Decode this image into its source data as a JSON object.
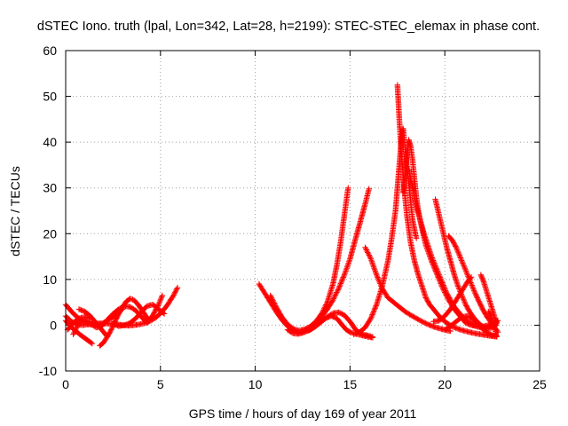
{
  "chart_data": {
    "type": "scatter",
    "title": "dSTEC Iono. truth (lpal, Lon=342, Lat=28, h=2199): STEC-STEC_elemax in phase cont.",
    "xlabel": "GPS time / hours of day 169 of year 2011",
    "ylabel": "dSTEC  / TECUs",
    "xlim": [
      0,
      25
    ],
    "ylim": [
      -10,
      60
    ],
    "xticks": [
      0,
      5,
      10,
      15,
      20,
      25
    ],
    "yticks": [
      -10,
      0,
      10,
      20,
      30,
      40,
      50,
      60
    ],
    "xtick_labels": [
      "0",
      "5",
      "10",
      "15",
      "20",
      "25"
    ],
    "ytick_labels": [
      "-10",
      "0",
      "10",
      "20",
      "30",
      "40",
      "50",
      "60"
    ],
    "grid": true,
    "marker": "+",
    "color": "#ff0000",
    "series": [
      {
        "x": [
          0.0,
          0.3,
          0.6,
          0.9,
          1.2,
          1.5,
          1.8,
          2.1,
          2.4,
          2.7,
          3.0
        ],
        "y": [
          4.5,
          3.0,
          1.8,
          0.8,
          0.2,
          0.0,
          0.2,
          0.7,
          1.5,
          2.5,
          3.5
        ]
      },
      {
        "x": [
          0.0,
          0.3,
          0.6,
          0.9,
          1.2,
          1.5,
          1.8,
          2.1,
          2.4,
          2.7,
          3.0,
          3.3,
          3.6,
          3.9,
          4.2,
          4.5,
          4.8,
          5.1,
          5.4,
          5.7,
          5.9
        ],
        "y": [
          2.0,
          0.8,
          0.2,
          0.0,
          0.2,
          0.3,
          0.4,
          0.4,
          0.3,
          0.2,
          0.0,
          -0.1,
          0.0,
          0.2,
          0.5,
          1.0,
          1.8,
          3.0,
          4.6,
          6.6,
          8.2
        ]
      },
      {
        "x": [
          0.1,
          0.4,
          0.7,
          1.0,
          1.3
        ],
        "y": [
          -1.0,
          0.5,
          1.5,
          1.8,
          1.5
        ]
      },
      {
        "x": [
          0.4,
          0.7,
          1.0,
          1.3,
          1.6,
          1.9,
          2.2,
          2.5,
          2.8,
          3.1,
          3.4,
          3.7,
          4.0,
          4.3,
          4.6,
          4.9,
          5.1
        ],
        "y": [
          -2.0,
          0.5,
          1.2,
          0.5,
          -0.5,
          -0.2,
          1.2,
          2.5,
          3.5,
          4.2,
          4.0,
          3.2,
          1.8,
          0.5,
          2.2,
          4.5,
          6.5
        ]
      },
      {
        "x": [
          0.0,
          0.2,
          0.4,
          0.6,
          0.8,
          1.0,
          1.2,
          1.4
        ],
        "y": [
          1.0,
          0.0,
          -0.8,
          -1.5,
          -2.2,
          -2.8,
          -3.4,
          -4.0
        ]
      },
      {
        "x": [
          0.7,
          1.0,
          1.3,
          1.6,
          1.9,
          2.2
        ],
        "y": [
          3.5,
          3.0,
          2.0,
          0.5,
          -1.0,
          -2.5
        ]
      },
      {
        "x": [
          1.8,
          2.0,
          2.2,
          2.4,
          2.6,
          2.8,
          3.0,
          3.2,
          3.4,
          3.6,
          3.8,
          4.0,
          4.2,
          4.4
        ],
        "y": [
          -4.5,
          -3.8,
          -2.5,
          -1.0,
          0.8,
          2.5,
          4.0,
          5.2,
          5.8,
          5.5,
          4.6,
          3.5,
          2.2,
          1.0
        ]
      },
      {
        "x": [
          2.5,
          2.8,
          3.1,
          3.4,
          3.7,
          4.0,
          4.3,
          4.6,
          4.9,
          5.2
        ],
        "y": [
          0.3,
          -0.2,
          0.0,
          0.5,
          1.5,
          3.0,
          4.2,
          4.5,
          3.5,
          2.5
        ]
      },
      {
        "x": [
          10.2,
          10.5,
          10.8,
          11.1,
          11.4,
          11.7,
          12.0,
          12.3,
          12.6,
          12.9,
          13.2,
          13.5,
          13.8,
          14.1,
          14.4,
          14.7,
          15.0,
          15.3,
          15.6,
          15.9,
          16.2
        ],
        "y": [
          9.0,
          7.0,
          5.0,
          3.0,
          1.2,
          -0.2,
          -1.2,
          -1.6,
          -1.5,
          -1.0,
          -0.2,
          0.8,
          1.8,
          2.6,
          2.8,
          2.2,
          0.8,
          -1.0,
          -2.0,
          -2.2,
          -2.6
        ]
      },
      {
        "x": [
          10.8,
          11.1,
          11.4,
          11.7,
          12.0,
          12.3,
          12.6,
          12.9,
          13.2,
          13.5,
          13.8,
          14.1,
          14.3,
          14.5,
          14.7,
          14.9
        ],
        "y": [
          6.5,
          4.0,
          1.8,
          0.2,
          -0.8,
          -1.2,
          -0.9,
          -0.3,
          0.8,
          2.5,
          5.0,
          9.0,
          13.0,
          18.0,
          24.0,
          30.0
        ]
      },
      {
        "x": [
          11.7,
          12.0,
          12.3,
          12.6,
          12.9,
          13.2,
          13.5,
          13.8,
          14.1,
          14.4,
          14.7,
          15.0,
          15.2,
          15.4,
          15.6,
          15.8,
          16.0
        ],
        "y": [
          -1.0,
          -1.8,
          -1.9,
          -1.5,
          -0.7,
          0.3,
          1.8,
          3.5,
          5.5,
          8.0,
          11.0,
          14.5,
          17.5,
          20.5,
          23.5,
          26.5,
          29.8
        ]
      },
      {
        "x": [
          12.8,
          13.1,
          13.4,
          13.7,
          14.0,
          14.3,
          14.6,
          14.8,
          15.0,
          15.2,
          15.4,
          15.6,
          15.8,
          16.0,
          16.2
        ],
        "y": [
          -1.2,
          -0.5,
          0.5,
          1.5,
          2.0,
          1.5,
          0.0,
          -1.0,
          -1.5,
          -1.8,
          -2.0,
          -2.2,
          -2.4,
          -2.6,
          -2.7
        ]
      },
      {
        "x": [
          15.2,
          15.5,
          15.8,
          16.1,
          16.4,
          16.7,
          17.0,
          17.2,
          17.4,
          17.5,
          17.6,
          17.7,
          17.8,
          17.9,
          18.0,
          18.1,
          18.2,
          18.3,
          18.5
        ],
        "y": [
          -2.0,
          -1.5,
          -0.5,
          1.5,
          4.5,
          8.5,
          14.0,
          19.0,
          25.0,
          30.0,
          35.0,
          40.0,
          43.0,
          39.0,
          35.0,
          31.0,
          27.0,
          23.0,
          19.0
        ]
      },
      {
        "x": [
          15.8,
          16.1,
          16.4,
          16.7,
          17.0,
          17.3,
          17.6,
          17.9,
          18.2,
          18.5,
          18.8,
          19.1,
          19.4,
          19.7,
          20.0,
          20.3
        ],
        "y": [
          17.0,
          14.5,
          11.0,
          8.0,
          6.0,
          5.0,
          4.0,
          3.0,
          2.2,
          1.5,
          0.8,
          0.2,
          -0.3,
          -0.7,
          -1.0,
          -1.3
        ]
      },
      {
        "x": [
          17.5,
          17.6,
          17.7,
          17.8,
          17.9,
          18.0,
          18.2,
          18.4,
          18.6,
          18.8,
          19.0,
          19.2,
          19.5,
          19.8,
          20.1,
          20.4,
          20.7,
          21.0,
          21.3,
          21.6,
          21.9,
          22.2,
          22.5,
          22.7
        ],
        "y": [
          52.5,
          45.0,
          38.0,
          33.0,
          28.0,
          24.0,
          18.0,
          14.0,
          11.0,
          8.5,
          6.0,
          4.5,
          3.0,
          1.5,
          0.5,
          -0.3,
          -0.8,
          -1.2,
          -1.5,
          -1.8,
          -2.0,
          -2.2,
          -2.4,
          -2.5
        ]
      },
      {
        "x": [
          17.8,
          17.9,
          18.0,
          18.1,
          18.2,
          18.3,
          18.4,
          18.5,
          18.6,
          18.8,
          19.0,
          19.3,
          19.6,
          19.9,
          20.2,
          20.5,
          20.8,
          21.1,
          21.4,
          21.7,
          22.0,
          22.3,
          22.6,
          22.8
        ],
        "y": [
          29.0,
          33.0,
          37.0,
          40.5,
          39.0,
          36.0,
          32.0,
          28.0,
          25.0,
          21.0,
          17.5,
          14.0,
          11.0,
          8.0,
          5.5,
          3.5,
          2.0,
          0.5,
          0.0,
          -0.2,
          -0.3,
          0.0,
          0.5,
          1.0
        ]
      },
      {
        "x": [
          18.1,
          18.3,
          18.5,
          18.7,
          18.9,
          19.1,
          19.3,
          19.5,
          19.7,
          19.9,
          20.1,
          20.3,
          20.5,
          20.7,
          20.9,
          21.1,
          21.3,
          21.5,
          21.7,
          21.9,
          22.1,
          22.3,
          22.5,
          22.7
        ],
        "y": [
          34.0,
          30.0,
          26.0,
          23.0,
          20.0,
          17.5,
          15.0,
          13.0,
          11.0,
          9.0,
          7.0,
          5.5,
          4.0,
          3.0,
          2.0,
          1.2,
          0.5,
          0.0,
          -0.3,
          -0.5,
          -0.6,
          -0.5,
          -0.2,
          0.3
        ]
      },
      {
        "x": [
          19.5,
          19.7,
          19.9,
          20.1,
          20.3,
          20.5,
          20.7,
          20.9,
          21.1,
          21.3,
          21.5,
          21.7,
          21.9,
          22.1,
          22.3,
          22.5,
          22.7
        ],
        "y": [
          27.5,
          24.0,
          20.5,
          17.0,
          14.0,
          11.0,
          8.5,
          6.5,
          4.5,
          3.0,
          1.8,
          0.8,
          0.0,
          -0.5,
          -0.8,
          -0.5,
          0.0
        ]
      },
      {
        "x": [
          20.2,
          20.4,
          20.6,
          20.8,
          21.0,
          21.2,
          21.4,
          21.6,
          21.8,
          22.0,
          22.2,
          22.4,
          22.6,
          22.8
        ],
        "y": [
          19.5,
          18.5,
          17.0,
          15.0,
          13.0,
          11.0,
          9.0,
          7.0,
          5.2,
          3.5,
          2.0,
          0.8,
          -0.3,
          -1.5
        ]
      },
      {
        "x": [
          20.0,
          20.3,
          20.6,
          20.9,
          21.2,
          21.5,
          21.8,
          22.1,
          22.4,
          22.7
        ],
        "y": [
          -1.0,
          -0.2,
          0.8,
          1.8,
          2.0,
          1.2,
          0.0,
          -1.2,
          -2.0,
          -2.5
        ]
      },
      {
        "x": [
          19.4,
          19.7,
          20.0,
          20.3,
          20.6,
          20.9,
          21.2,
          21.4
        ],
        "y": [
          0.8,
          1.0,
          2.0,
          3.5,
          5.5,
          7.5,
          9.5,
          10.5
        ]
      },
      {
        "x": [
          21.9,
          22.05,
          22.2,
          22.35,
          22.5,
          22.65,
          22.75
        ],
        "y": [
          11.0,
          9.5,
          7.5,
          5.5,
          3.5,
          1.5,
          0.5
        ]
      },
      {
        "x": [
          22.3,
          22.45,
          22.55,
          22.65,
          22.7,
          22.75
        ],
        "y": [
          3.0,
          1.8,
          0.5,
          -0.8,
          -2.0,
          -2.5
        ]
      }
    ]
  }
}
